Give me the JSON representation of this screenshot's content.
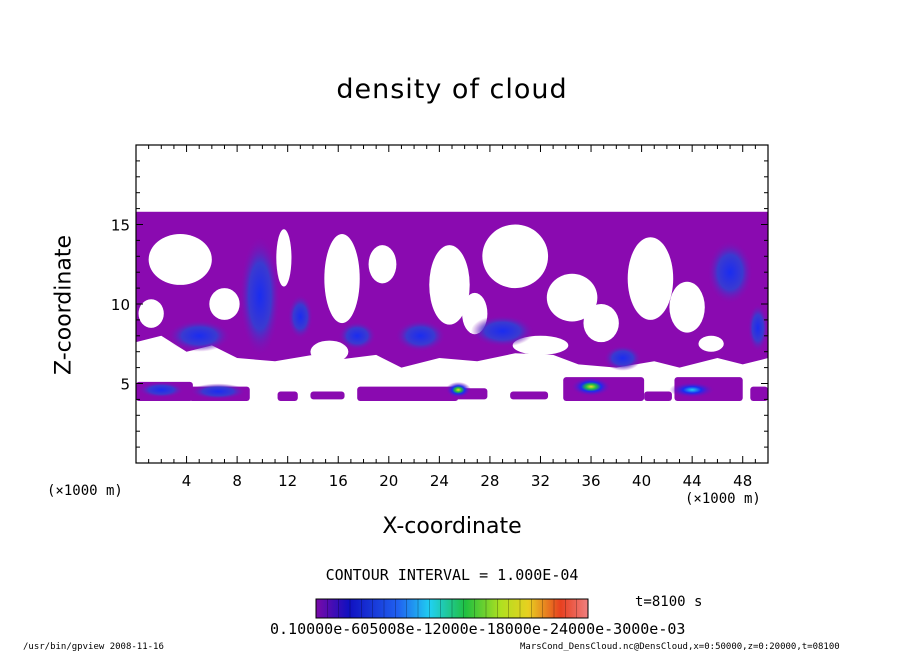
{
  "chart_data": {
    "type": "heatmap",
    "title": "density of cloud",
    "xlabel": "X-coordinate",
    "ylabel": "Z-coordinate",
    "x_unit_label": "(×1000 m)",
    "xlim": [
      0,
      50
    ],
    "ylim": [
      0,
      20
    ],
    "x_ticks": [
      4,
      8,
      12,
      16,
      20,
      24,
      28,
      32,
      36,
      40,
      44,
      48
    ],
    "y_ticks": [
      5,
      10,
      15
    ],
    "contour_interval_label": "CONTOUR INTERVAL = 1.000E-04",
    "time_label": "t=8100 s",
    "colorbar_labels_text": "0.10000e-605008e-12000e-18000e-24000e-3000e-03",
    "colors": {
      "base": "#8a0ab0",
      "blue": "#1a2cf0",
      "cyan": "#22d0f0",
      "green": "#22c040",
      "yellow": "#e8e020",
      "red": "#e83020"
    },
    "cloud_layer": {
      "top": 15.8,
      "base_lower": 3.9
    },
    "blobs": [
      {
        "x": 9.8,
        "z": 10.5,
        "rx": 1.6,
        "rz": 3.8,
        "level": 2
      },
      {
        "x": 13.0,
        "z": 9.2,
        "rx": 1.0,
        "rz": 1.4,
        "level": 2
      },
      {
        "x": 47.0,
        "z": 12.0,
        "rx": 1.8,
        "rz": 2.0,
        "level": 2
      },
      {
        "x": 2.0,
        "z": 4.6,
        "rx": 1.8,
        "rz": 0.5,
        "level": 2
      },
      {
        "x": 6.5,
        "z": 4.5,
        "rx": 2.2,
        "rz": 0.5,
        "level": 2
      },
      {
        "x": 25.5,
        "z": 4.6,
        "rx": 1.0,
        "rz": 0.5,
        "level": 4
      },
      {
        "x": 36.0,
        "z": 4.8,
        "rx": 1.6,
        "rz": 0.6,
        "level": 4
      },
      {
        "x": 44.0,
        "z": 4.6,
        "rx": 1.8,
        "rz": 0.5,
        "level": 3
      },
      {
        "x": 22.5,
        "z": 8.0,
        "rx": 2.0,
        "rz": 1.0,
        "level": 2
      },
      {
        "x": 29.0,
        "z": 8.3,
        "rx": 2.5,
        "rz": 1.0,
        "level": 2
      },
      {
        "x": 5.0,
        "z": 8.0,
        "rx": 2.5,
        "rz": 1.0,
        "level": 2
      },
      {
        "x": 17.5,
        "z": 8.0,
        "rx": 1.5,
        "rz": 0.9,
        "level": 2
      },
      {
        "x": 38.5,
        "z": 6.6,
        "rx": 1.5,
        "rz": 0.8,
        "level": 2
      },
      {
        "x": 49.2,
        "z": 8.5,
        "rx": 0.8,
        "rz": 1.5,
        "level": 2
      }
    ]
  },
  "units": {
    "left": "(×1000 m)",
    "right": "(×1000 m)"
  },
  "footer": {
    "left": "/usr/bin/gpview  2008-11-16",
    "right": "MarsCond_DensCloud.nc@DensCloud,x=0:50000,z=0:20000,t=08100"
  }
}
